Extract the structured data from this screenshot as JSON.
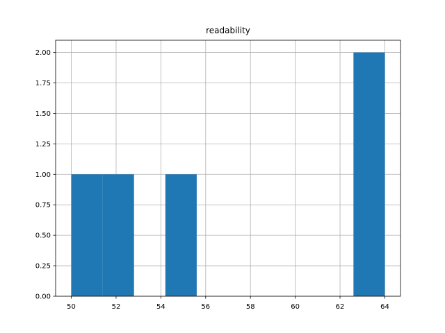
{
  "chart_data": {
    "type": "histogram",
    "title": "readability",
    "bins": [
      50,
      51.4,
      52.8,
      54.2,
      55.6,
      57,
      58.4,
      59.8,
      61.2,
      62.6,
      64
    ],
    "counts": [
      1,
      1,
      0,
      1,
      0,
      0,
      0,
      0,
      0,
      2
    ],
    "color": "#1f77b4",
    "xlim": [
      49.3,
      64.7
    ],
    "xticks": [
      50,
      52,
      54,
      56,
      58,
      60,
      62,
      64
    ],
    "ylim": [
      0,
      2.1
    ],
    "yticks": [
      {
        "value": 0,
        "label": "0.00"
      },
      {
        "value": 0.25,
        "label": "0.25"
      },
      {
        "value": 0.5,
        "label": "0.50"
      },
      {
        "value": 0.75,
        "label": "0.75"
      },
      {
        "value": 1,
        "label": "1.00"
      },
      {
        "value": 1.25,
        "label": "1.25"
      },
      {
        "value": 1.5,
        "label": "1.50"
      },
      {
        "value": 1.75,
        "label": "1.75"
      },
      {
        "value": 2,
        "label": "2.00"
      }
    ],
    "grid": true
  }
}
